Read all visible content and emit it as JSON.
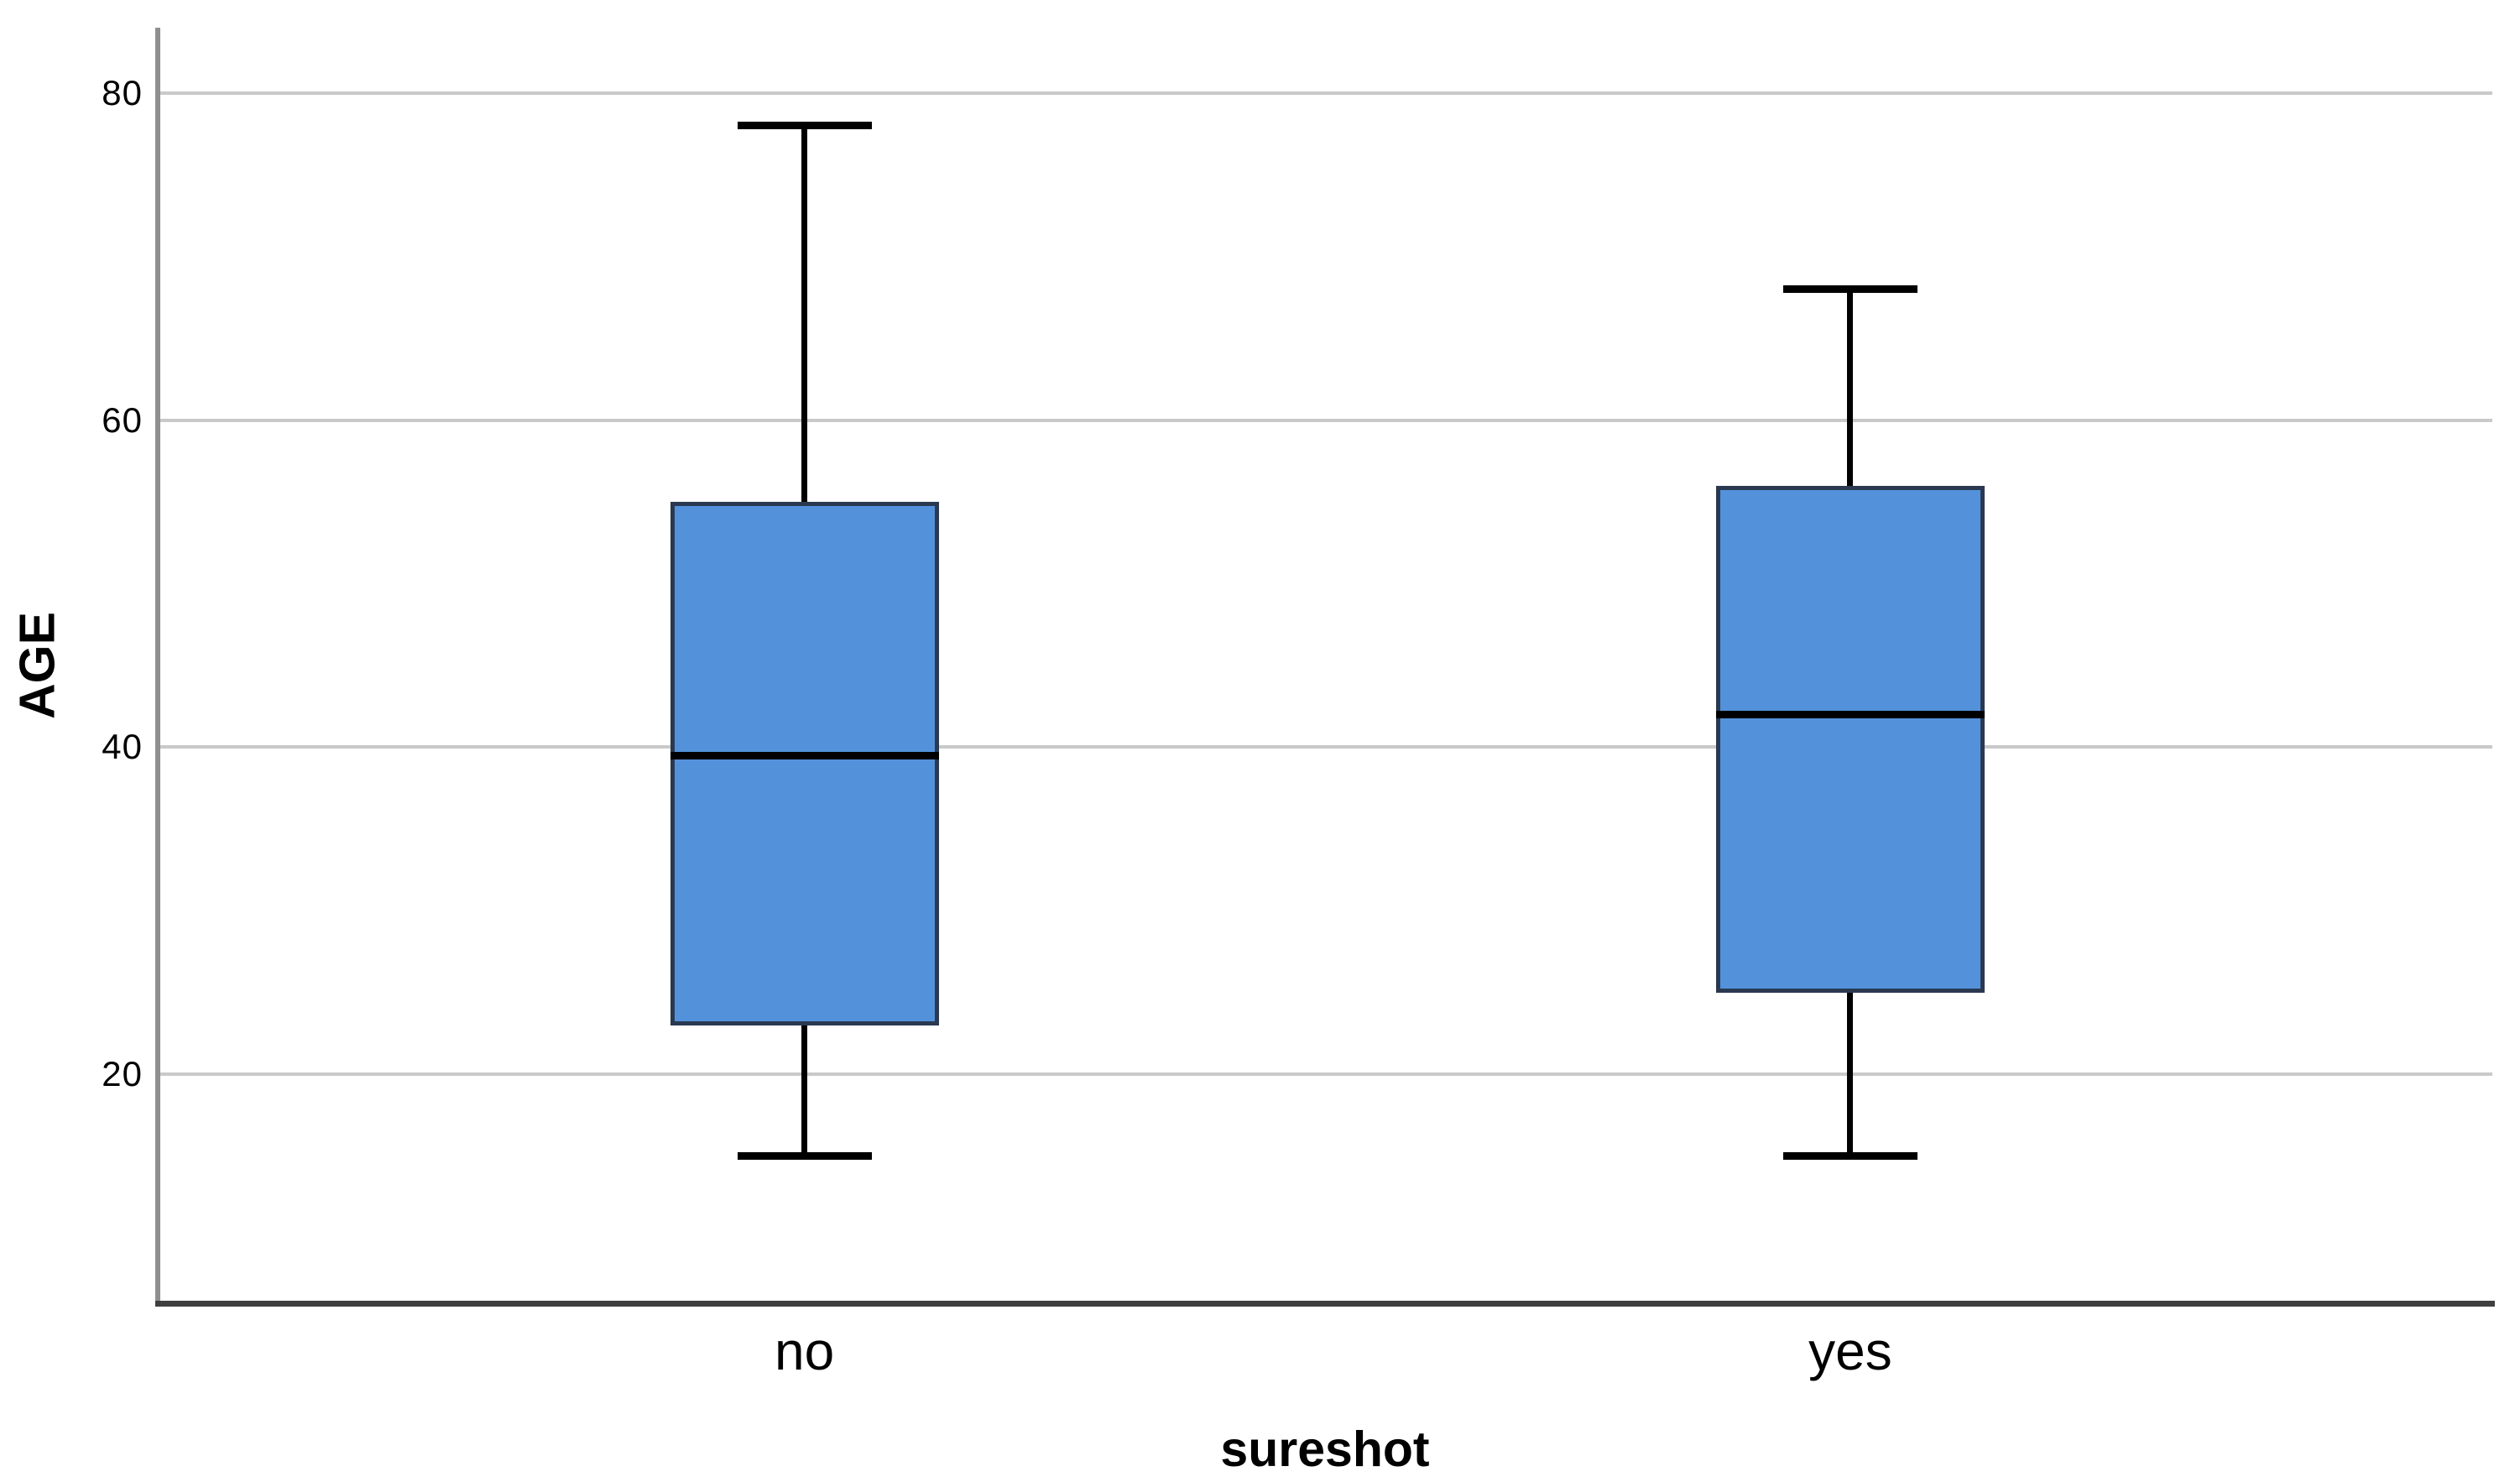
{
  "chart_data": {
    "type": "boxplot",
    "title": "",
    "ylabel": "AGE",
    "xlabel": "sureshot",
    "categories": [
      "no",
      "yes"
    ],
    "series": [
      {
        "category": "no",
        "whisker_low": 15,
        "q1": 23,
        "median": 39.5,
        "q3": 55,
        "whisker_high": 78
      },
      {
        "category": "yes",
        "whisker_low": 15,
        "q1": 25,
        "median": 42,
        "q3": 56,
        "whisker_high": 68
      }
    ],
    "yticks": [
      20,
      40,
      60,
      80
    ],
    "ylim": [
      6,
      84
    ],
    "grid": "horizontal-only",
    "legend": "none",
    "colors": {
      "box_fill": "#5392DB",
      "box_border": "#2A3950",
      "median_line": "#000000",
      "whisker": "#000000",
      "gridline": "#C9C9C9",
      "y_axis_line": "#8F8F8F",
      "x_axis_line": "#3F3F3F",
      "text": "#000000",
      "background": "#FFFFFF"
    }
  }
}
